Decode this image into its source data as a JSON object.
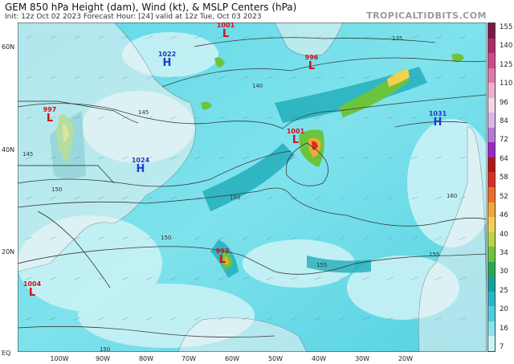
{
  "header": {
    "title": "GEM 850 hPa Height (dam), Wind (kt), & MSLP Centers (hPa)",
    "subtitle": "Init: 12z Oct 02 2023   Forecast Hour: [24]   valid at 12z Tue, Oct 03 2023",
    "brand": "TROPICALTIDBITS.COM"
  },
  "axes": {
    "lat_labels": [
      "60N",
      "40N",
      "20N",
      "EQ"
    ],
    "lon_labels": [
      "100W",
      "90W",
      "80W",
      "70W",
      "60W",
      "50W",
      "40W",
      "30W",
      "20W"
    ]
  },
  "colorbar": {
    "ticks": [
      "155",
      "140",
      "125",
      "110",
      "96",
      "84",
      "72",
      "64",
      "58",
      "52",
      "46",
      "40",
      "34",
      "30",
      "25",
      "20",
      "16",
      "7"
    ],
    "colors": [
      "#7a1a46",
      "#b02a6a",
      "#d04a8a",
      "#e07aaa",
      "#eeb0d0",
      "#f4d4e8",
      "#d9b4ec",
      "#b37ad8",
      "#9a28c8",
      "#b01818",
      "#d8301e",
      "#ec6e2a",
      "#f0a83a",
      "#f2d050",
      "#bcd444",
      "#6cc43c",
      "#2aa84e",
      "#11a39c",
      "#2ab8c8",
      "#4ccfe0",
      "#86e4ee",
      "#c7f4f8"
    ]
  },
  "pressure_centers": [
    {
      "type": "L",
      "value": "1001",
      "name": "low-1001-north"
    },
    {
      "type": "L",
      "value": "996",
      "name": "low-996"
    },
    {
      "type": "H",
      "value": "1022",
      "name": "high-1022"
    },
    {
      "type": "L",
      "value": "997",
      "name": "low-997"
    },
    {
      "type": "H",
      "value": "1024",
      "name": "high-1024"
    },
    {
      "type": "L",
      "value": "1001",
      "name": "low-1001-atlantic"
    },
    {
      "type": "H",
      "value": "1031",
      "name": "high-1031"
    },
    {
      "type": "L",
      "value": "993",
      "name": "low-993"
    },
    {
      "type": "L",
      "value": "1004",
      "name": "low-1004"
    }
  ],
  "contour_labels": [
    "135",
    "140",
    "150",
    "145",
    "155",
    "160",
    "150",
    "150",
    "155",
    "150",
    "145"
  ]
}
